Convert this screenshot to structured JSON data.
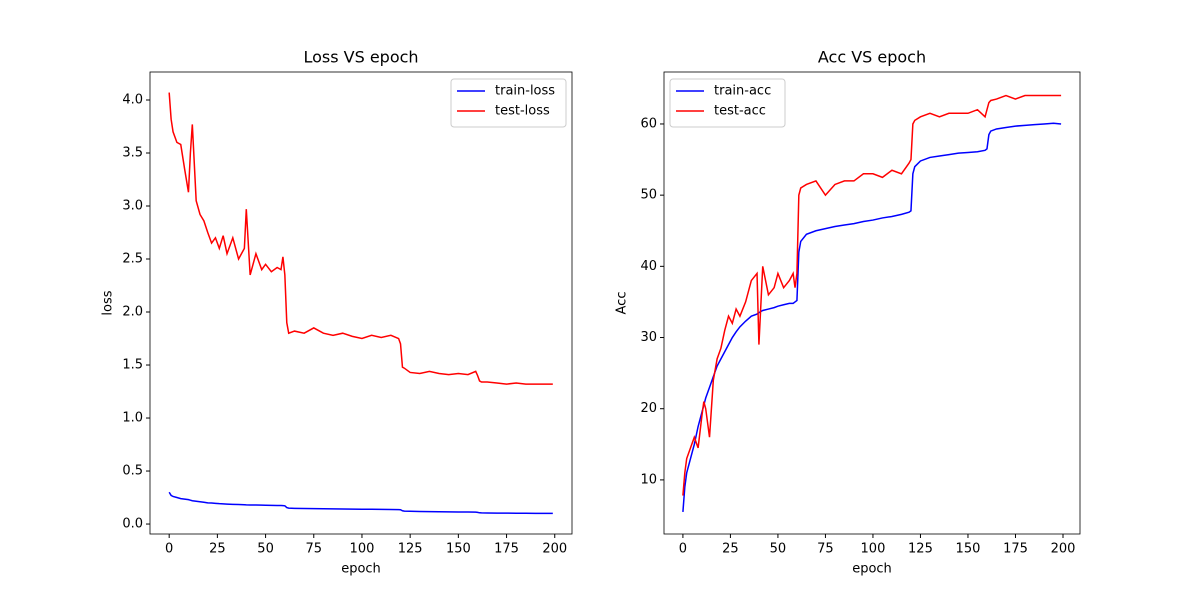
{
  "chart_data": [
    {
      "type": "line",
      "title": "Loss VS epoch",
      "x_label": "epoch",
      "y_label": "loss",
      "x": [
        0,
        1,
        2,
        4,
        6,
        8,
        10,
        11,
        12,
        14,
        16,
        18,
        20,
        22,
        24,
        26,
        28,
        30,
        33,
        36,
        39,
        40,
        42,
        45,
        48,
        50,
        53,
        56,
        58,
        59,
        60,
        61,
        62,
        65,
        70,
        75,
        80,
        85,
        90,
        95,
        100,
        105,
        110,
        115,
        119,
        120,
        121,
        122,
        125,
        130,
        135,
        140,
        145,
        150,
        155,
        159,
        160,
        161,
        162,
        165,
        170,
        175,
        180,
        185,
        190,
        195,
        199
      ],
      "series": [
        {
          "name": "train-loss",
          "color": "#0000ff",
          "values": [
            0.3,
            0.27,
            0.26,
            0.25,
            0.24,
            0.235,
            0.23,
            0.225,
            0.22,
            0.215,
            0.21,
            0.205,
            0.2,
            0.198,
            0.195,
            0.192,
            0.19,
            0.188,
            0.186,
            0.184,
            0.182,
            0.181,
            0.18,
            0.179,
            0.178,
            0.177,
            0.176,
            0.175,
            0.175,
            0.174,
            0.172,
            0.155,
            0.15,
            0.148,
            0.146,
            0.145,
            0.144,
            0.143,
            0.142,
            0.141,
            0.14,
            0.139,
            0.138,
            0.137,
            0.136,
            0.135,
            0.125,
            0.122,
            0.12,
            0.118,
            0.117,
            0.116,
            0.115,
            0.114,
            0.113,
            0.112,
            0.11,
            0.106,
            0.105,
            0.104,
            0.103,
            0.103,
            0.102,
            0.102,
            0.101,
            0.101,
            0.1
          ]
        },
        {
          "name": "test-loss",
          "color": "#ff0000",
          "values": [
            4.07,
            3.82,
            3.7,
            3.6,
            3.58,
            3.35,
            3.13,
            3.5,
            3.77,
            3.05,
            2.92,
            2.86,
            2.75,
            2.65,
            2.7,
            2.6,
            2.72,
            2.55,
            2.7,
            2.5,
            2.6,
            2.97,
            2.35,
            2.55,
            2.4,
            2.45,
            2.38,
            2.42,
            2.4,
            2.52,
            2.35,
            1.9,
            1.8,
            1.82,
            1.8,
            1.85,
            1.8,
            1.78,
            1.8,
            1.77,
            1.75,
            1.78,
            1.76,
            1.78,
            1.75,
            1.7,
            1.48,
            1.47,
            1.43,
            1.42,
            1.44,
            1.42,
            1.41,
            1.42,
            1.41,
            1.44,
            1.4,
            1.35,
            1.34,
            1.34,
            1.33,
            1.32,
            1.33,
            1.32,
            1.32,
            1.32,
            1.32
          ]
        }
      ],
      "xlim": [
        -9.95,
        208.95
      ],
      "xticks": [
        0,
        25,
        50,
        75,
        100,
        125,
        150,
        175,
        200
      ],
      "ylim": [
        -0.094,
        4.264
      ],
      "yticks": [
        {
          "value": 0,
          "label": "0.0"
        },
        0.5,
        {
          "value": 1,
          "label": "1.0"
        },
        1.5,
        {
          "value": 2,
          "label": "2.0"
        },
        2.5,
        {
          "value": 3,
          "label": "3.0"
        },
        3.5,
        {
          "value": 4,
          "label": "4.0"
        }
      ],
      "legend": "upper right"
    },
    {
      "type": "line",
      "title": "Acc VS epoch",
      "x_label": "epoch",
      "y_label": "Acc",
      "x": [
        0,
        1,
        2,
        4,
        6,
        8,
        10,
        11,
        12,
        14,
        16,
        18,
        20,
        22,
        24,
        26,
        28,
        30,
        33,
        36,
        39,
        40,
        42,
        45,
        48,
        50,
        53,
        56,
        58,
        59,
        60,
        61,
        62,
        65,
        70,
        75,
        80,
        85,
        90,
        95,
        100,
        105,
        110,
        115,
        119,
        120,
        121,
        122,
        125,
        130,
        135,
        140,
        145,
        150,
        155,
        159,
        160,
        161,
        162,
        165,
        170,
        175,
        180,
        185,
        190,
        195,
        199
      ],
      "series": [
        {
          "name": "train-acc",
          "color": "#0000ff",
          "values": [
            5.5,
            9,
            11,
            13,
            15,
            17.5,
            19.5,
            20.5,
            21.5,
            23,
            24.5,
            26,
            27,
            28,
            29,
            30,
            30.8,
            31.5,
            32.3,
            33,
            33.3,
            33.5,
            33.8,
            34,
            34.2,
            34.4,
            34.6,
            34.8,
            34.8,
            35,
            35.2,
            42,
            43.5,
            44.5,
            45,
            45.3,
            45.6,
            45.8,
            46,
            46.3,
            46.5,
            46.8,
            47,
            47.3,
            47.6,
            47.8,
            53,
            54,
            54.8,
            55.3,
            55.5,
            55.7,
            55.9,
            56,
            56.1,
            56.3,
            56.5,
            58.5,
            59,
            59.3,
            59.5,
            59.7,
            59.8,
            59.9,
            60,
            60.1,
            60
          ]
        },
        {
          "name": "test-acc",
          "color": "#ff0000",
          "values": [
            7.8,
            11,
            13,
            14.5,
            16,
            14.5,
            19,
            21,
            20,
            16,
            24,
            27,
            28.5,
            31,
            33,
            32,
            34,
            33,
            35,
            38,
            39,
            29,
            40,
            36,
            37,
            39,
            37,
            38,
            39,
            37,
            39,
            50,
            51,
            51.5,
            52,
            50,
            51.5,
            52,
            52,
            53,
            53,
            52.5,
            53.5,
            53,
            54.5,
            55,
            60,
            60.5,
            61,
            61.5,
            61,
            61.5,
            61.5,
            61.5,
            62,
            61,
            62,
            63,
            63.3,
            63.5,
            64,
            63.5,
            64,
            64,
            64,
            64,
            64
          ]
        }
      ],
      "xlim": [
        -9.95,
        208.95
      ],
      "xticks": [
        0,
        25,
        50,
        75,
        100,
        125,
        150,
        175,
        200
      ],
      "ylim": [
        2.4,
        67.3
      ],
      "yticks": [
        10,
        20,
        30,
        40,
        50,
        60
      ],
      "legend": "upper left"
    }
  ]
}
